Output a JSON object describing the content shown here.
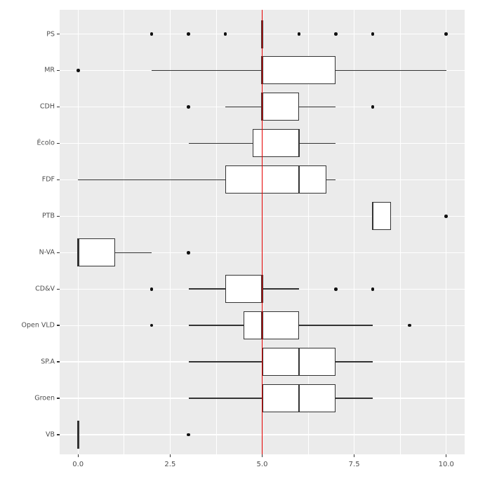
{
  "figure": {
    "title": "",
    "background_color": "#FFFFFF",
    "panel_color": "#EBEBEB",
    "gridline_color": "#FFFFFF",
    "box_border_color": "#333333",
    "box_fill_color": "#FFFFFF",
    "outlier_color": "#111111",
    "axis_text_color": "#4D4D4D"
  },
  "chart_data": {
    "type": "boxplot",
    "orientation": "horizontal",
    "title": "",
    "xlabel": "",
    "ylabel": "",
    "xlim": [
      -0.5,
      10.5
    ],
    "x_major_ticks": [
      0,
      2.5,
      5,
      7.5,
      10
    ],
    "x_tick_labels": [
      "0.0",
      "2.5",
      "5.0",
      "7.5",
      "10.0"
    ],
    "x_minor_ticks": [
      1.25,
      3.75,
      6.25,
      8.75
    ],
    "grid": "major-white-on-grey",
    "legend": "none",
    "reference_line": {
      "x": 5,
      "color": "#E60000"
    },
    "categories": [
      "PS",
      "MR",
      "CDH",
      "Écolo",
      "FDF",
      "PTB",
      "N-VA",
      "CD&V",
      "Open VLD",
      "SP.A",
      "Groen",
      "VB"
    ],
    "boxes": [
      {
        "label": "PS",
        "whislo": 5,
        "q1": 5,
        "med": 5,
        "q3": 5,
        "whishi": 5,
        "outliers": [
          2,
          3,
          4,
          6,
          7,
          8,
          10
        ]
      },
      {
        "label": "MR",
        "whislo": 2,
        "q1": 5,
        "med": 5,
        "q3": 7,
        "whishi": 10,
        "outliers": [
          0
        ]
      },
      {
        "label": "CDH",
        "whislo": 4,
        "q1": 5,
        "med": 5,
        "q3": 6,
        "whishi": 7,
        "outliers": [
          3,
          8
        ]
      },
      {
        "label": "Écolo",
        "whislo": 3,
        "q1": 4.75,
        "med": 6,
        "q3": 6,
        "whishi": 7,
        "outliers": []
      },
      {
        "label": "FDF",
        "whislo": 0,
        "q1": 4,
        "med": 6,
        "q3": 6.75,
        "whishi": 7,
        "outliers": []
      },
      {
        "label": "PTB",
        "whislo": 8,
        "q1": 8,
        "med": 8,
        "q3": 8.5,
        "whishi": 8.5,
        "outliers": [
          10
        ]
      },
      {
        "label": "N-VA",
        "whislo": 0,
        "q1": 0,
        "med": 0,
        "q3": 1,
        "whishi": 2,
        "outliers": [
          3
        ]
      },
      {
        "label": "CD&V",
        "whislo": 3,
        "q1": 4,
        "med": 5,
        "q3": 5,
        "whishi": 6,
        "outliers": [
          2,
          7,
          8
        ]
      },
      {
        "label": "Open VLD",
        "whislo": 3,
        "q1": 4.5,
        "med": 5,
        "q3": 6,
        "whishi": 8,
        "outliers": [
          2,
          9
        ]
      },
      {
        "label": "SP.A",
        "whislo": 3,
        "q1": 5,
        "med": 6,
        "q3": 7,
        "whishi": 8,
        "outliers": []
      },
      {
        "label": "Groen",
        "whislo": 3,
        "q1": 5,
        "med": 6,
        "q3": 7,
        "whishi": 8,
        "outliers": []
      },
      {
        "label": "VB",
        "whislo": 0,
        "q1": 0,
        "med": 0,
        "q3": 0,
        "whishi": 0,
        "outliers": [
          3
        ]
      }
    ]
  }
}
